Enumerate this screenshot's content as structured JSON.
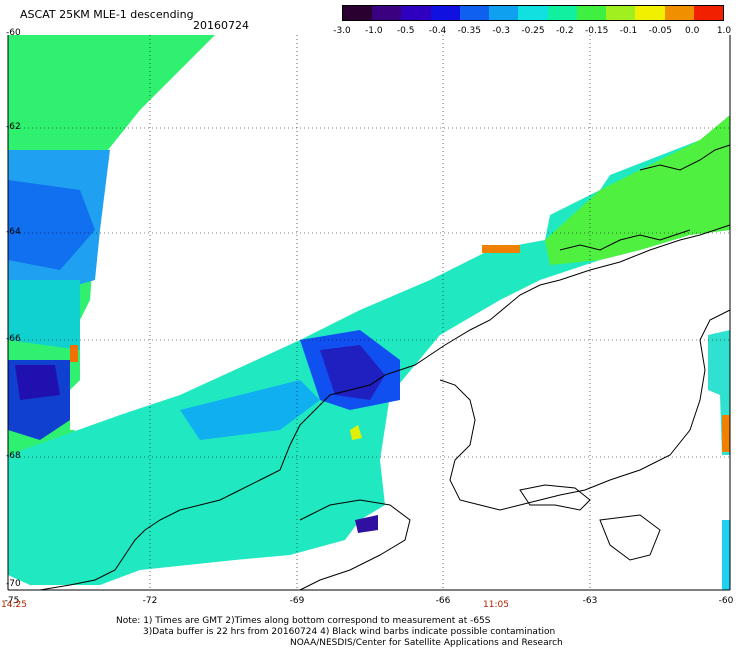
{
  "title": "ASCAT 25KM MLE-1 descending",
  "date": "20160724",
  "colorbar": {
    "labels": [
      "-3.0",
      "-1.0",
      "-0.5",
      "-0.4",
      "-0.35",
      "-0.3",
      "-0.25",
      "-0.2",
      "-0.15",
      "-0.1",
      "-0.05",
      "0.0",
      "1.0"
    ],
    "colors": [
      "#2a0030",
      "#3a0080",
      "#3000c0",
      "#1010e0",
      "#1060f0",
      "#10a0f0",
      "#10e0e0",
      "#10f0a0",
      "#40f040",
      "#a0f020",
      "#f0f000",
      "#f09000",
      "#f02000"
    ]
  },
  "map": {
    "lat_labels": [
      "-60",
      "-62",
      "-64",
      "-66",
      "-68",
      "-70"
    ],
    "lon_labels": [
      "-75",
      "-72",
      "-69",
      "-66",
      "-63",
      "-60"
    ],
    "time_labels": [
      "14:25",
      "11:05"
    ]
  },
  "notes": {
    "line1": "Note: 1) Times are GMT 2)Times along bottom correspond to measurement at -65S",
    "line2": "3)Data buffer is 22 hrs from 20160724 4) Black wind barbs indicate possible contamination",
    "line3": "NOAA/NESDIS/Center for Satellite Applications and Research"
  }
}
